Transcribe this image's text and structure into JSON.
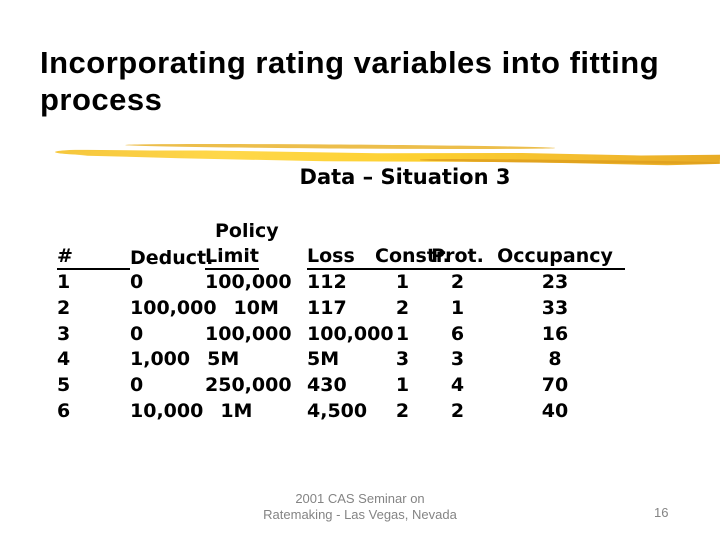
{
  "slide": {
    "title": "Incorporating rating variables into fitting process",
    "subtitle": "Data – Situation 3"
  },
  "table": {
    "header": {
      "policy": "Policy",
      "num": "#",
      "deduct": "Deduct.",
      "limit": "Limit",
      "loss": "Loss",
      "constr": "Constr.",
      "prot": "Prot.",
      "occupancy": "Occupancy"
    },
    "rows": [
      {
        "num": "1",
        "deduct": "0",
        "limit": "100,000",
        "loss": "112",
        "constr": "1",
        "prot": "2",
        "occupancy": "23"
      },
      {
        "num": "2",
        "deduct": "100,000",
        "limit": "10M",
        "loss": "117",
        "constr": "2",
        "prot": "1",
        "occupancy": "33"
      },
      {
        "num": "3",
        "deduct": "0",
        "limit": "100,000",
        "loss": "100,000",
        "constr": "1",
        "prot": "6",
        "occupancy": "16"
      },
      {
        "num": "4",
        "deduct": "1,000",
        "limit": "5M",
        "loss": "5M",
        "constr": "3",
        "prot": "3",
        "occupancy": "8"
      },
      {
        "num": "5",
        "deduct": "0",
        "limit": "250,000",
        "loss": "430",
        "constr": "1",
        "prot": "4",
        "occupancy": "70"
      },
      {
        "num": "6",
        "deduct": "10,000",
        "limit": "1M",
        "loss": "4,500",
        "constr": "2",
        "prot": "2",
        "occupancy": "40"
      }
    ]
  },
  "footer": {
    "line1": "2001 CAS Seminar on",
    "line2": "Ratemaking - Las Vegas, Nevada",
    "page_number": "16"
  },
  "colors": {
    "title_text": "#000000",
    "table_text": "#000000",
    "footer_text": "#848484",
    "brush_yellow": "#FFD84A",
    "brush_gold": "#E8AB25",
    "brush_deep": "#DFA01E"
  }
}
